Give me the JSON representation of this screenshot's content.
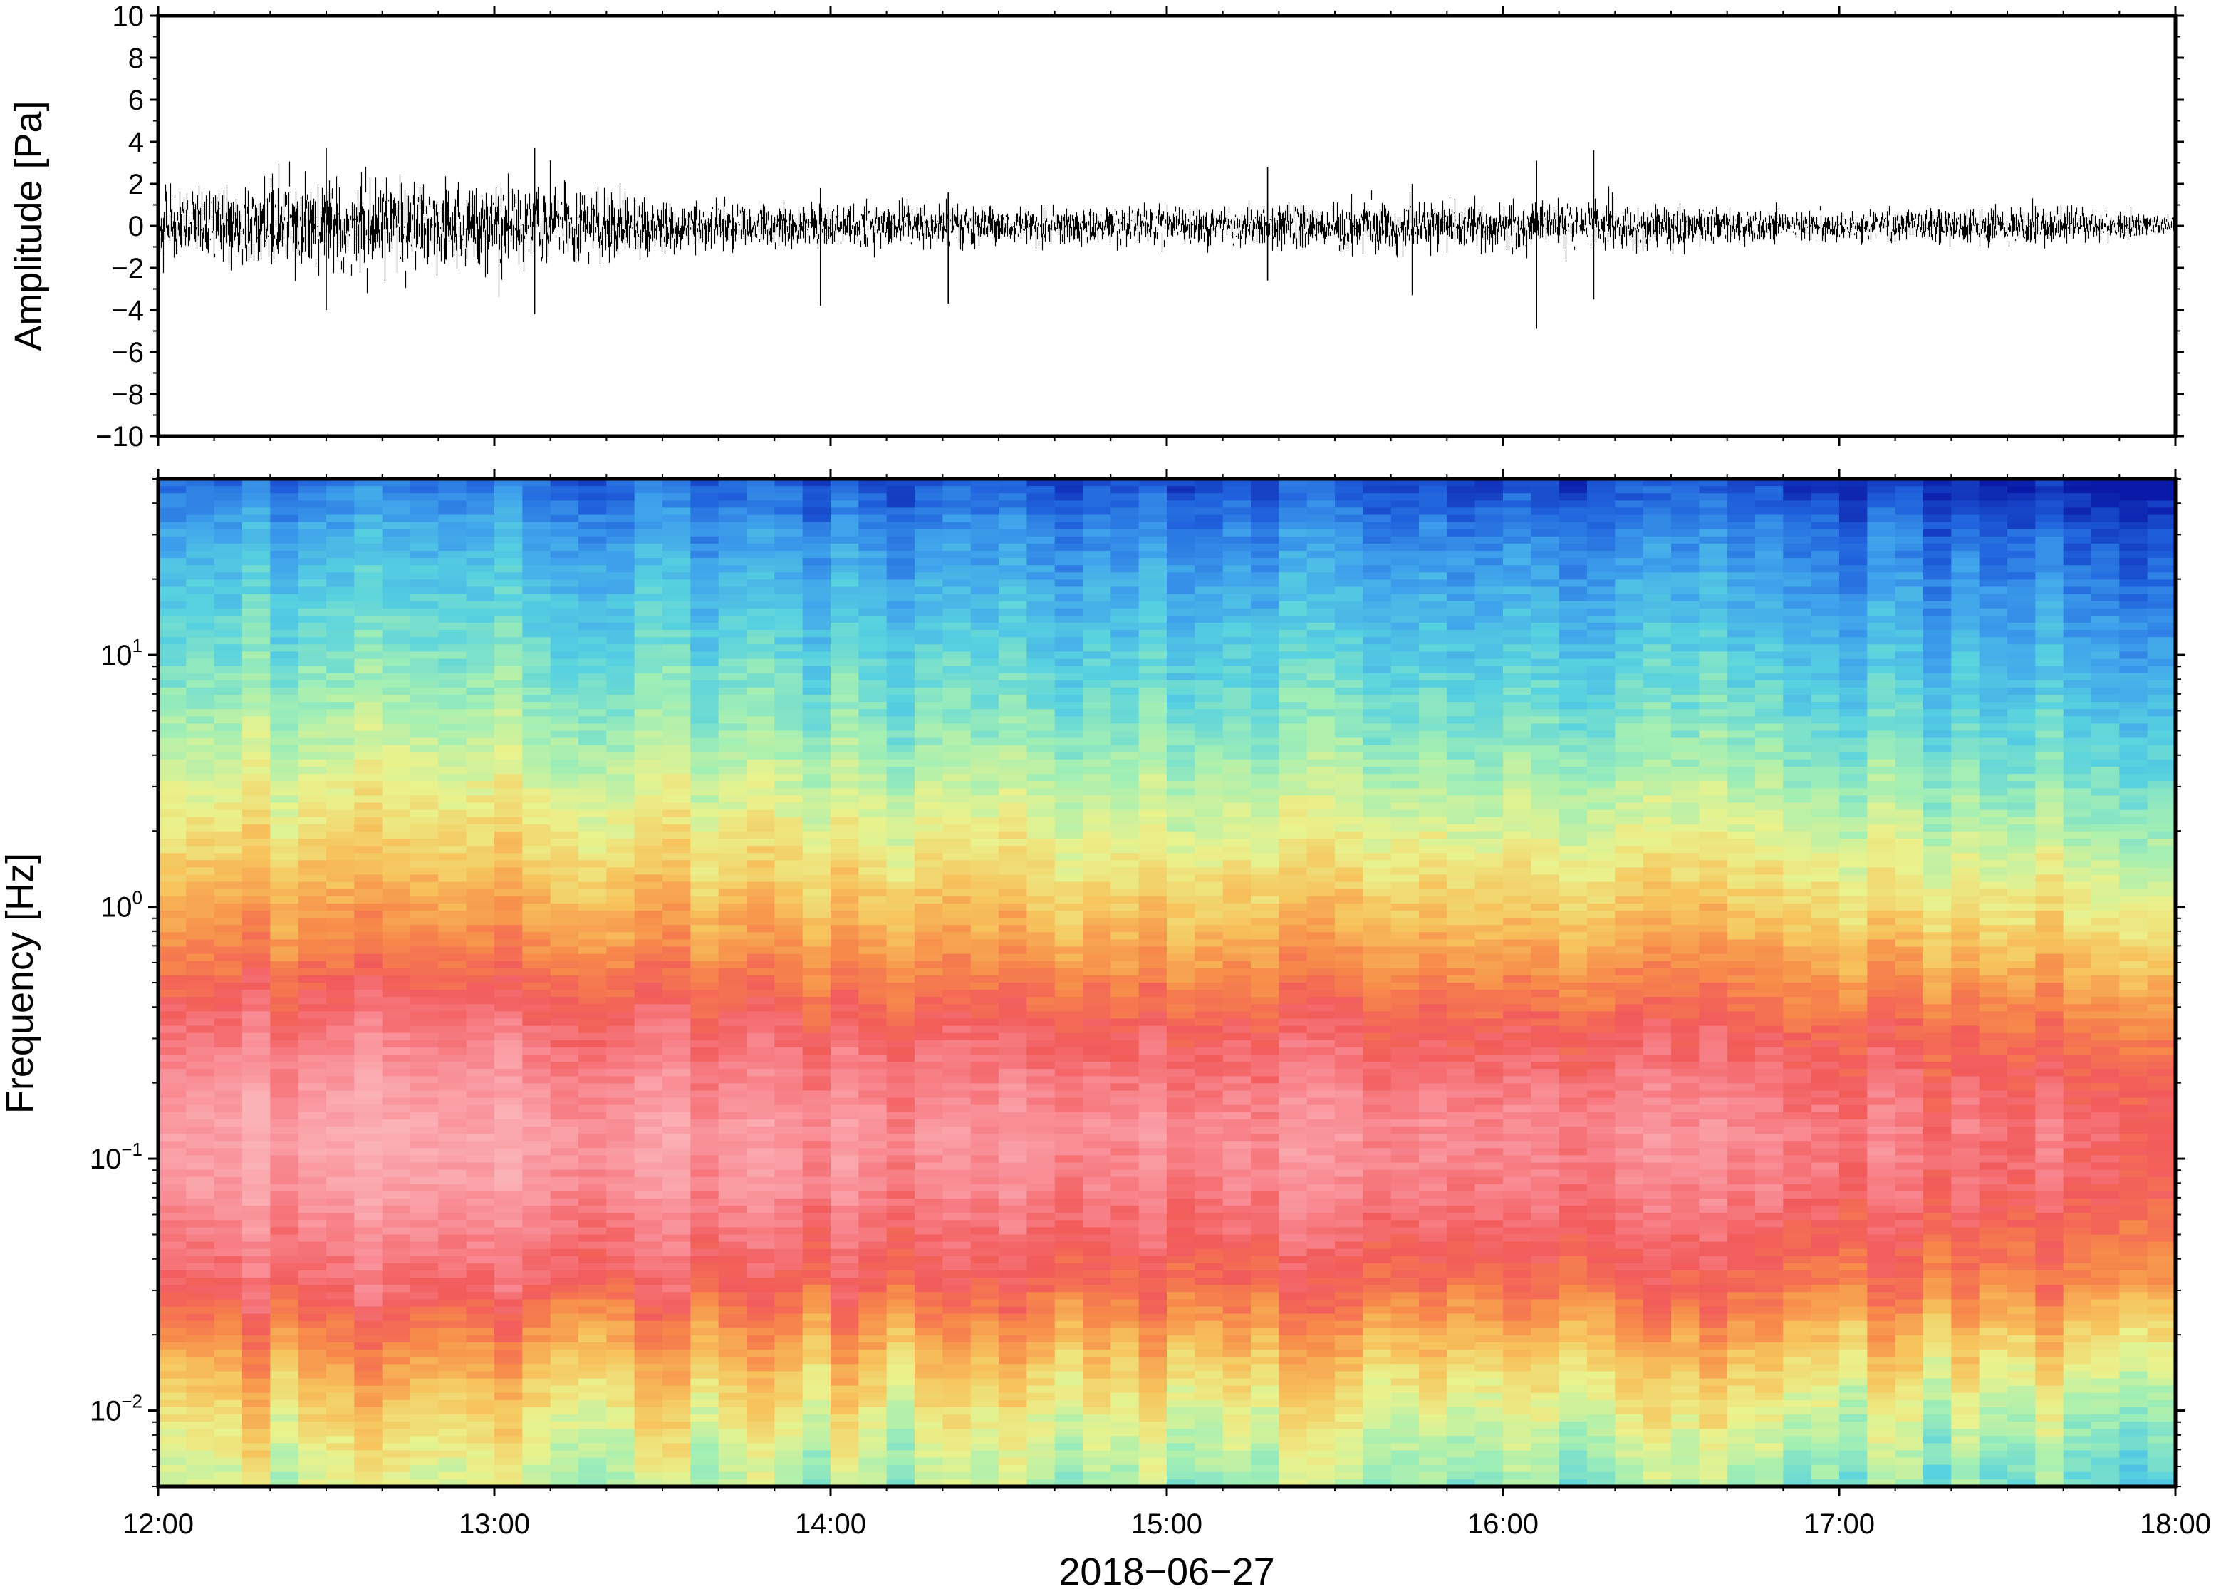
{
  "chart_data": [
    {
      "type": "line",
      "ylabel": "Amplitude [Pa]",
      "ylim": [
        -10,
        10
      ],
      "y_ticks": [
        "10",
        "8",
        "6",
        "4",
        "2",
        "0",
        "−2",
        "−4",
        "−6",
        "−8",
        "−10"
      ],
      "y_tick_values": [
        10,
        8,
        6,
        4,
        2,
        0,
        -2,
        -4,
        -6,
        -8,
        -10
      ],
      "x_range_hours": [
        12,
        18
      ],
      "envelope": {
        "time_hours": [
          12.0,
          12.25,
          12.5,
          12.75,
          13.0,
          13.25,
          13.5,
          13.75,
          14.0,
          14.25,
          14.5,
          14.75,
          15.0,
          15.25,
          15.5,
          15.75,
          16.0,
          16.25,
          16.5,
          16.75,
          17.0,
          17.25,
          17.5,
          17.75,
          18.0
        ],
        "amplitude_pa": [
          2.2,
          2.6,
          3.0,
          2.8,
          2.9,
          2.4,
          1.7,
          1.3,
          1.4,
          1.3,
          1.2,
          1.2,
          1.2,
          1.3,
          1.5,
          1.5,
          1.5,
          1.6,
          1.3,
          1.0,
          1.0,
          1.1,
          1.1,
          1.0,
          0.6
        ]
      },
      "spikes": [
        {
          "time_hours": 12.5,
          "min": -4.0,
          "max": 3.7
        },
        {
          "time_hours": 13.12,
          "min": -4.2,
          "max": 3.7
        },
        {
          "time_hours": 13.97,
          "min": -3.8,
          "max": 1.8
        },
        {
          "time_hours": 14.35,
          "min": -3.7,
          "max": 1.6
        },
        {
          "time_hours": 15.3,
          "min": -2.6,
          "max": 2.8
        },
        {
          "time_hours": 15.73,
          "min": -3.3,
          "max": 2.0
        },
        {
          "time_hours": 16.1,
          "min": -4.9,
          "max": 3.1
        },
        {
          "time_hours": 16.27,
          "min": -3.5,
          "max": 3.6
        }
      ]
    },
    {
      "type": "heatmap",
      "ylabel": "Frequency [Hz]",
      "xlabel": "2018−06−27",
      "y_scale": "log",
      "ylim_hz": [
        0.005,
        50
      ],
      "y_ticks": [
        {
          "base": "10",
          "exp": "1",
          "value": 10
        },
        {
          "base": "10",
          "exp": "0",
          "value": 1
        },
        {
          "base": "10",
          "exp": "−1",
          "value": 0.1
        },
        {
          "base": "10",
          "exp": "−2",
          "value": 0.01
        }
      ],
      "x_ticks": [
        "12:00",
        "13:00",
        "14:00",
        "15:00",
        "16:00",
        "17:00",
        "18:00"
      ],
      "x_tick_hours": [
        12,
        13,
        14,
        15,
        16,
        17,
        18
      ],
      "colormap": [
        "#0a1aa8",
        "#1f60dc",
        "#3fa2ec",
        "#58d2e0",
        "#a3efb4",
        "#eaf28d",
        "#f7c35c",
        "#f78a4a",
        "#f25b5b",
        "#f98b94",
        "#fbb2b6"
      ],
      "profile": {
        "log10_freq": [
          -2.3,
          -2.1,
          -1.9,
          -1.7,
          -1.5,
          -1.3,
          -1.1,
          -0.9,
          -0.7,
          -0.5,
          -0.3,
          -0.1,
          0.1,
          0.3,
          0.5,
          0.7,
          0.9,
          1.1,
          1.3,
          1.5,
          1.7
        ],
        "level": [
          0.42,
          0.48,
          0.56,
          0.66,
          0.78,
          0.84,
          0.9,
          0.92,
          0.88,
          0.82,
          0.73,
          0.64,
          0.57,
          0.5,
          0.44,
          0.38,
          0.33,
          0.28,
          0.23,
          0.17,
          0.08
        ]
      },
      "time_trend": {
        "time_hours": [
          12.0,
          13.0,
          14.0,
          15.0,
          16.0,
          17.0,
          18.0
        ],
        "level_offset": [
          0.04,
          0.05,
          0.0,
          -0.02,
          0.0,
          -0.04,
          -0.09
        ]
      }
    }
  ]
}
